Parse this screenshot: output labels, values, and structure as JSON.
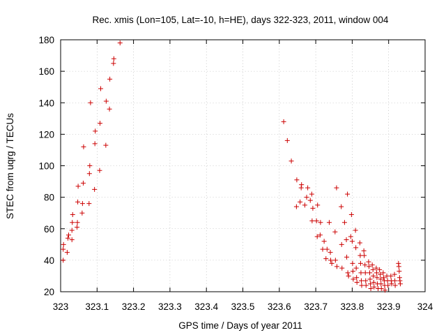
{
  "chart_data": {
    "type": "scatter",
    "title": "Rec. xmis (Lon=105, Lat=-10, h=HE), days 322-323, 2011, window 004",
    "xlabel": "GPS time / Days of year 2011",
    "ylabel": "STEC from uqrg / TECUs",
    "xlim": [
      323,
      324
    ],
    "ylim": [
      20,
      180
    ],
    "xticks": [
      323,
      323.1,
      323.2,
      323.3,
      323.4,
      323.5,
      323.6,
      323.7,
      323.8,
      323.9,
      324
    ],
    "xtick_labels": [
      "323",
      "323.1",
      "323.2",
      "323.3",
      "323.4",
      "323.5",
      "323.6",
      "323.7",
      "323.8",
      "323.9",
      "324"
    ],
    "yticks": [
      20,
      40,
      60,
      80,
      100,
      120,
      140,
      160,
      180
    ],
    "ytick_labels": [
      "20",
      "40",
      "60",
      "80",
      "100",
      "120",
      "140",
      "160",
      "180"
    ],
    "grid": true,
    "marker": "+",
    "color": "#cc0000",
    "series": [
      {
        "name": "STEC",
        "points": [
          [
            323.007,
            40
          ],
          [
            323.007,
            47
          ],
          [
            323.008,
            50
          ],
          [
            323.018,
            45
          ],
          [
            323.02,
            54
          ],
          [
            323.022,
            56
          ],
          [
            323.031,
            53
          ],
          [
            323.031,
            59
          ],
          [
            323.032,
            64
          ],
          [
            323.033,
            69
          ],
          [
            323.045,
            61
          ],
          [
            323.046,
            64
          ],
          [
            323.047,
            77
          ],
          [
            323.048,
            87
          ],
          [
            323.059,
            70
          ],
          [
            323.06,
            76
          ],
          [
            323.062,
            89
          ],
          [
            323.063,
            112
          ],
          [
            323.078,
            76
          ],
          [
            323.079,
            95
          ],
          [
            323.08,
            100
          ],
          [
            323.082,
            140
          ],
          [
            323.093,
            85
          ],
          [
            323.094,
            114
          ],
          [
            323.095,
            122
          ],
          [
            323.107,
            97
          ],
          [
            323.108,
            127
          ],
          [
            323.11,
            149
          ],
          [
            323.124,
            113
          ],
          [
            323.125,
            141
          ],
          [
            323.134,
            136
          ],
          [
            323.135,
            155
          ],
          [
            323.145,
            165
          ],
          [
            323.146,
            168
          ],
          [
            323.163,
            178
          ],
          [
            323.612,
            128
          ],
          [
            323.622,
            116
          ],
          [
            323.633,
            103
          ],
          [
            323.647,
            74
          ],
          [
            323.648,
            91
          ],
          [
            323.657,
            77
          ],
          [
            323.66,
            86
          ],
          [
            323.661,
            88
          ],
          [
            323.67,
            75
          ],
          [
            323.675,
            80
          ],
          [
            323.678,
            86
          ],
          [
            323.685,
            78
          ],
          [
            323.689,
            82
          ],
          [
            323.69,
            65
          ],
          [
            323.692,
            73
          ],
          [
            323.702,
            65
          ],
          [
            323.704,
            55
          ],
          [
            323.705,
            75
          ],
          [
            323.712,
            56
          ],
          [
            323.713,
            64
          ],
          [
            323.719,
            47
          ],
          [
            323.723,
            52
          ],
          [
            323.728,
            41
          ],
          [
            323.731,
            47
          ],
          [
            323.737,
            64
          ],
          [
            323.74,
            45
          ],
          [
            323.741,
            40
          ],
          [
            323.744,
            38
          ],
          [
            323.753,
            58
          ],
          [
            323.754,
            40
          ],
          [
            323.757,
            86
          ],
          [
            323.758,
            36
          ],
          [
            323.77,
            74
          ],
          [
            323.771,
            50
          ],
          [
            323.772,
            35
          ],
          [
            323.779,
            64
          ],
          [
            323.784,
            53
          ],
          [
            323.785,
            42
          ],
          [
            323.787,
            82
          ],
          [
            323.788,
            32
          ],
          [
            323.79,
            30
          ],
          [
            323.796,
            55
          ],
          [
            323.798,
            69
          ],
          [
            323.8,
            52
          ],
          [
            323.801,
            38
          ],
          [
            323.802,
            33
          ],
          [
            323.803,
            28
          ],
          [
            323.809,
            59
          ],
          [
            323.81,
            48
          ],
          [
            323.811,
            35
          ],
          [
            323.812,
            29
          ],
          [
            323.813,
            26
          ],
          [
            323.821,
            51
          ],
          [
            323.822,
            43
          ],
          [
            323.823,
            38
          ],
          [
            323.824,
            32
          ],
          [
            323.825,
            27
          ],
          [
            323.826,
            24
          ],
          [
            323.832,
            46
          ],
          [
            323.833,
            43
          ],
          [
            323.835,
            37
          ],
          [
            323.836,
            32
          ],
          [
            323.837,
            27
          ],
          [
            323.838,
            24
          ],
          [
            323.845,
            39
          ],
          [
            323.846,
            36
          ],
          [
            323.848,
            32
          ],
          [
            323.849,
            28
          ],
          [
            323.85,
            25
          ],
          [
            323.851,
            22
          ],
          [
            323.855,
            37
          ],
          [
            323.857,
            34
          ],
          [
            323.858,
            30
          ],
          [
            323.859,
            26
          ],
          [
            323.86,
            23
          ],
          [
            323.866,
            35
          ],
          [
            323.867,
            32
          ],
          [
            323.868,
            29
          ],
          [
            323.869,
            25
          ],
          [
            323.871,
            22
          ],
          [
            323.875,
            34
          ],
          [
            323.877,
            31
          ],
          [
            323.878,
            28
          ],
          [
            323.879,
            25
          ],
          [
            323.88,
            22
          ],
          [
            323.885,
            32
          ],
          [
            323.886,
            29
          ],
          [
            323.888,
            27
          ],
          [
            323.889,
            24
          ],
          [
            323.89,
            21
          ],
          [
            323.895,
            30
          ],
          [
            323.897,
            27
          ],
          [
            323.898,
            24
          ],
          [
            323.906,
            30
          ],
          [
            323.907,
            27
          ],
          [
            323.908,
            25
          ],
          [
            323.916,
            31
          ],
          [
            323.917,
            27
          ],
          [
            323.918,
            24
          ],
          [
            323.927,
            38
          ],
          [
            323.928,
            36
          ],
          [
            323.929,
            33
          ],
          [
            323.93,
            29
          ],
          [
            323.931,
            27
          ],
          [
            323.932,
            25
          ]
        ]
      }
    ]
  }
}
